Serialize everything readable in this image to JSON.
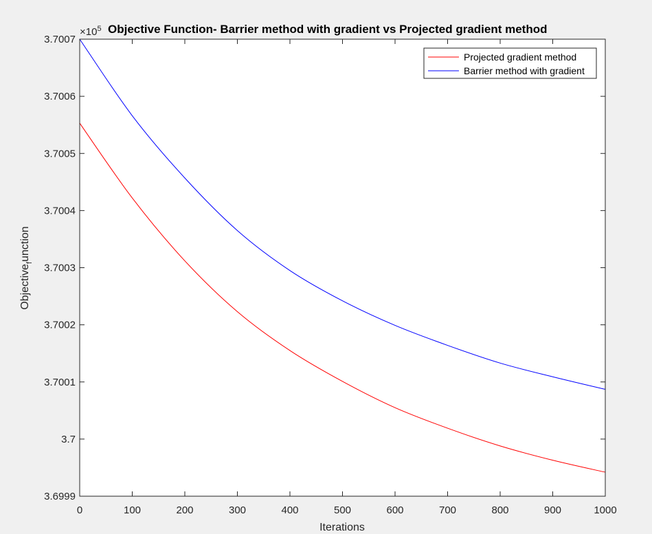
{
  "chart_data": {
    "type": "line",
    "title": "Objective Function- Barrier method with gradient vs Projected gradient method",
    "xlabel": "Iterations",
    "ylabel_main": "Objective",
    "ylabel_sub": "f",
    "ylabel_rest": "unction",
    "exponent_prefix": "×10",
    "exponent_power": "5",
    "xlim": [
      0,
      1000
    ],
    "ylim": [
      3.6999,
      3.7007
    ],
    "x_ticks": [
      0,
      100,
      200,
      300,
      400,
      500,
      600,
      700,
      800,
      900,
      1000
    ],
    "x_tick_labels": [
      "0",
      "100",
      "200",
      "300",
      "400",
      "500",
      "600",
      "700",
      "800",
      "900",
      "1000"
    ],
    "y_ticks": [
      3.6999,
      3.7,
      3.7001,
      3.7002,
      3.7003,
      3.7004,
      3.7005,
      3.7006,
      3.7007
    ],
    "y_tick_labels": [
      "3.6999",
      "3.7",
      "3.7001",
      "3.7002",
      "3.7003",
      "3.7004",
      "3.7005",
      "3.7006",
      "3.7007"
    ],
    "grid": false,
    "box": true,
    "legend_position": "top-right",
    "series": [
      {
        "name": "Projected gradient method",
        "color": "#ff0000",
        "x": [
          0,
          100,
          200,
          300,
          400,
          500,
          600,
          700,
          800,
          900,
          1000
        ],
        "values": [
          3.700553,
          3.700422,
          3.700312,
          3.700223,
          3.700155,
          3.700101,
          3.700055,
          3.700019,
          3.699988,
          3.699963,
          3.699942
        ]
      },
      {
        "name": "Barrier method with gradient",
        "color": "#0000ff",
        "x": [
          0,
          100,
          200,
          300,
          400,
          500,
          600,
          700,
          800,
          900,
          1000
        ],
        "values": [
          3.7007,
          3.700566,
          3.700457,
          3.700365,
          3.700295,
          3.700242,
          3.700199,
          3.700164,
          3.700133,
          3.700109,
          3.700087
        ]
      }
    ]
  }
}
